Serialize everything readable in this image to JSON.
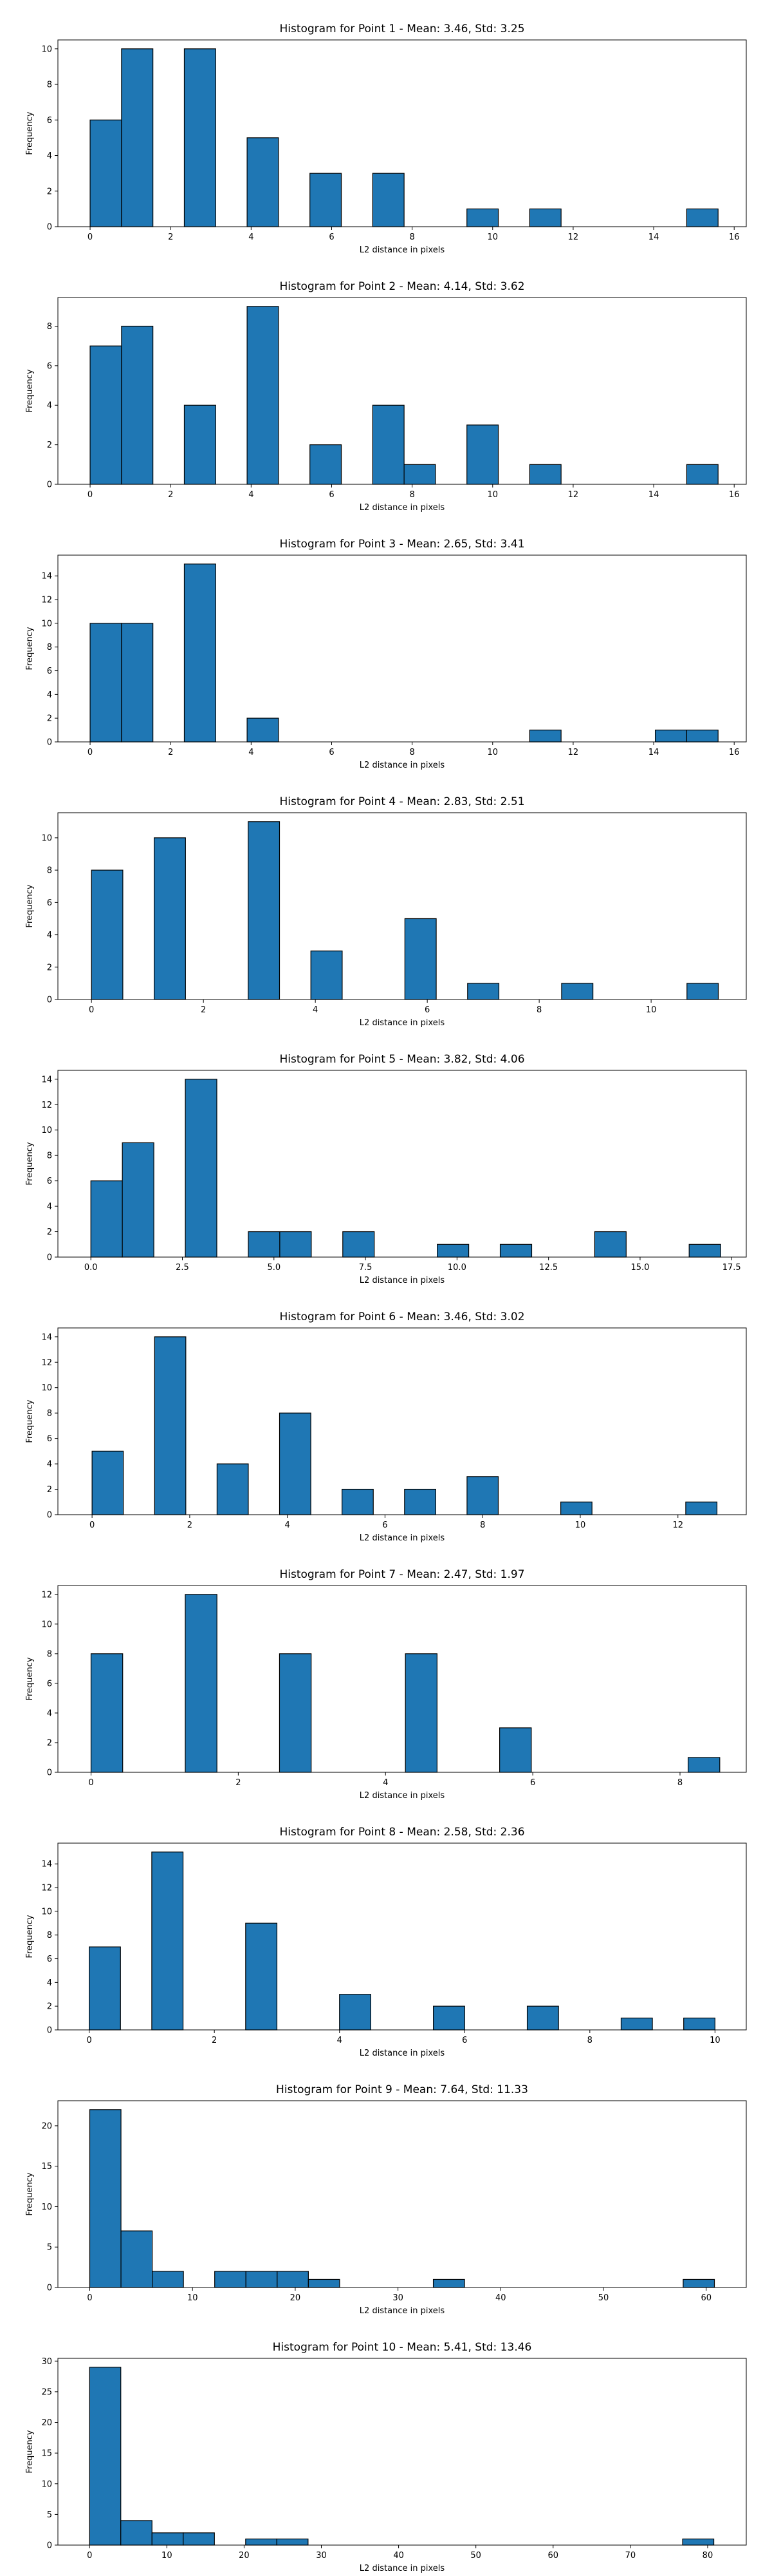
{
  "chart_data": [
    {
      "type": "bar",
      "title": "Histogram for Point 1 - Mean: 3.46, Std: 3.25",
      "xlabel": "L2 distance in pixels",
      "ylabel": "Frequency",
      "xlim": [
        -0.8,
        16.3
      ],
      "ylim": [
        0,
        10.5
      ],
      "xticks": [
        0,
        2,
        4,
        6,
        8,
        10,
        12,
        14,
        16
      ],
      "xtick_labels": [
        "0",
        "2",
        "4",
        "6",
        "8",
        "10",
        "12",
        "14",
        "16"
      ],
      "yticks": [
        0,
        2,
        4,
        6,
        8,
        10
      ],
      "ytick_labels": [
        "0",
        "2",
        "4",
        "6",
        "8",
        "10"
      ],
      "bins": [
        [
          0.0,
          0.78,
          6
        ],
        [
          0.78,
          1.56,
          10
        ],
        [
          2.34,
          3.12,
          10
        ],
        [
          3.9,
          4.68,
          5
        ],
        [
          5.46,
          6.24,
          3
        ],
        [
          7.02,
          7.8,
          3
        ],
        [
          9.36,
          10.14,
          1
        ],
        [
          10.92,
          11.7,
          1
        ],
        [
          14.82,
          15.6,
          1
        ]
      ]
    },
    {
      "type": "bar",
      "title": "Histogram for Point 2 - Mean: 4.14, Std: 3.62",
      "xlabel": "L2 distance in pixels",
      "ylabel": "Frequency",
      "xlim": [
        -0.8,
        16.3
      ],
      "ylim": [
        0,
        9.45
      ],
      "xticks": [
        0,
        2,
        4,
        6,
        8,
        10,
        12,
        14,
        16
      ],
      "xtick_labels": [
        "0",
        "2",
        "4",
        "6",
        "8",
        "10",
        "12",
        "14",
        "16"
      ],
      "yticks": [
        0,
        2,
        4,
        6,
        8
      ],
      "ytick_labels": [
        "0",
        "2",
        "4",
        "6",
        "8"
      ],
      "bins": [
        [
          0.0,
          0.78,
          7
        ],
        [
          0.78,
          1.56,
          8
        ],
        [
          2.34,
          3.12,
          4
        ],
        [
          3.9,
          4.68,
          9
        ],
        [
          5.46,
          6.24,
          2
        ],
        [
          7.02,
          7.8,
          4
        ],
        [
          7.8,
          8.58,
          1
        ],
        [
          9.36,
          10.14,
          3
        ],
        [
          10.92,
          11.7,
          1
        ],
        [
          14.82,
          15.6,
          1
        ]
      ]
    },
    {
      "type": "bar",
      "title": "Histogram for Point 3 - Mean: 2.65, Std: 3.41",
      "xlabel": "L2 distance in pixels",
      "ylabel": "Frequency",
      "xlim": [
        -0.8,
        16.3
      ],
      "ylim": [
        0,
        15.75
      ],
      "xticks": [
        0,
        2,
        4,
        6,
        8,
        10,
        12,
        14,
        16
      ],
      "xtick_labels": [
        "0",
        "2",
        "4",
        "6",
        "8",
        "10",
        "12",
        "14",
        "16"
      ],
      "yticks": [
        0,
        2,
        4,
        6,
        8,
        10,
        12,
        14
      ],
      "ytick_labels": [
        "0",
        "2",
        "4",
        "6",
        "8",
        "10",
        "12",
        "14"
      ],
      "bins": [
        [
          0.0,
          0.78,
          10
        ],
        [
          0.78,
          1.56,
          10
        ],
        [
          2.34,
          3.12,
          15
        ],
        [
          3.9,
          4.68,
          2
        ],
        [
          10.92,
          11.7,
          1
        ],
        [
          14.04,
          14.82,
          1
        ],
        [
          14.82,
          15.6,
          1
        ]
      ]
    },
    {
      "type": "bar",
      "title": "Histogram for Point 4 - Mean: 2.83, Std: 2.51",
      "xlabel": "L2 distance in pixels",
      "ylabel": "Frequency",
      "xlim": [
        -0.6,
        11.7
      ],
      "ylim": [
        0,
        11.55
      ],
      "xticks": [
        0,
        2,
        4,
        6,
        8,
        10
      ],
      "xtick_labels": [
        "0",
        "2",
        "4",
        "6",
        "8",
        "10"
      ],
      "yticks": [
        0,
        2,
        4,
        6,
        8,
        10
      ],
      "ytick_labels": [
        "0",
        "2",
        "4",
        "6",
        "8",
        "10"
      ],
      "bins": [
        [
          0.0,
          0.56,
          8
        ],
        [
          1.12,
          1.68,
          10
        ],
        [
          2.8,
          3.36,
          11
        ],
        [
          3.92,
          4.48,
          3
        ],
        [
          5.6,
          6.16,
          5
        ],
        [
          6.72,
          7.28,
          1
        ],
        [
          8.4,
          8.96,
          1
        ],
        [
          10.64,
          11.2,
          1
        ]
      ]
    },
    {
      "type": "bar",
      "title": "Histogram for Point 5 - Mean: 3.82, Std: 4.06",
      "xlabel": "L2 distance in pixels",
      "ylabel": "Frequency",
      "xlim": [
        -0.9,
        17.9
      ],
      "ylim": [
        0,
        14.7
      ],
      "xticks": [
        0,
        2.5,
        5,
        7.5,
        10,
        12.5,
        15,
        17.5
      ],
      "xtick_labels": [
        "0.0",
        "2.5",
        "5.0",
        "7.5",
        "10.0",
        "12.5",
        "15.0",
        "17.5"
      ],
      "yticks": [
        0,
        2,
        4,
        6,
        8,
        10,
        12,
        14
      ],
      "ytick_labels": [
        "0",
        "2",
        "4",
        "6",
        "8",
        "10",
        "12",
        "14"
      ],
      "bins": [
        [
          0.0,
          0.86,
          6
        ],
        [
          0.86,
          1.72,
          9
        ],
        [
          2.58,
          3.44,
          14
        ],
        [
          4.3,
          5.16,
          2
        ],
        [
          5.16,
          6.02,
          2
        ],
        [
          6.88,
          7.74,
          2
        ],
        [
          9.46,
          10.32,
          1
        ],
        [
          11.18,
          12.04,
          1
        ],
        [
          13.76,
          14.62,
          2
        ],
        [
          16.34,
          17.2,
          1
        ]
      ]
    },
    {
      "type": "bar",
      "title": "Histogram for Point 6 - Mean: 3.46, Std: 3.02",
      "xlabel": "L2 distance in pixels",
      "ylabel": "Frequency",
      "xlim": [
        -0.7,
        13.4
      ],
      "ylim": [
        0,
        14.7
      ],
      "xticks": [
        0,
        2,
        4,
        6,
        8,
        10,
        12
      ],
      "xtick_labels": [
        "0",
        "2",
        "4",
        "6",
        "8",
        "10",
        "12"
      ],
      "yticks": [
        0,
        2,
        4,
        6,
        8,
        10,
        12,
        14
      ],
      "ytick_labels": [
        "0",
        "2",
        "4",
        "6",
        "8",
        "10",
        "12",
        "14"
      ],
      "bins": [
        [
          0.0,
          0.64,
          5
        ],
        [
          1.28,
          1.92,
          14
        ],
        [
          2.56,
          3.2,
          4
        ],
        [
          3.84,
          4.48,
          8
        ],
        [
          5.12,
          5.76,
          2
        ],
        [
          6.4,
          7.04,
          2
        ],
        [
          7.68,
          8.32,
          3
        ],
        [
          9.6,
          10.24,
          1
        ],
        [
          12.16,
          12.8,
          1
        ]
      ]
    },
    {
      "type": "bar",
      "title": "Histogram for Point 7 - Mean: 2.47, Std: 1.97",
      "xlabel": "L2 distance in pixels",
      "ylabel": "Frequency",
      "xlim": [
        -0.45,
        8.9
      ],
      "ylim": [
        0,
        12.6
      ],
      "xticks": [
        0,
        2,
        4,
        6,
        8
      ],
      "xtick_labels": [
        "0",
        "2",
        "4",
        "6",
        "8"
      ],
      "yticks": [
        0,
        2,
        4,
        6,
        8,
        10,
        12
      ],
      "ytick_labels": [
        "0",
        "2",
        "4",
        "6",
        "8",
        "10",
        "12"
      ],
      "bins": [
        [
          0.0,
          0.43,
          8
        ],
        [
          1.28,
          1.71,
          12
        ],
        [
          2.56,
          2.99,
          8
        ],
        [
          4.27,
          4.7,
          8
        ],
        [
          5.55,
          5.98,
          3
        ],
        [
          8.11,
          8.54,
          1
        ]
      ]
    },
    {
      "type": "bar",
      "title": "Histogram for Point 8 - Mean: 2.58, Std: 2.36",
      "xlabel": "L2 distance in pixels",
      "ylabel": "Frequency",
      "xlim": [
        -0.5,
        10.5
      ],
      "ylim": [
        0,
        15.75
      ],
      "xticks": [
        0,
        2,
        4,
        6,
        8,
        10
      ],
      "xtick_labels": [
        "0",
        "2",
        "4",
        "6",
        "8",
        "10"
      ],
      "yticks": [
        0,
        2,
        4,
        6,
        8,
        10,
        12,
        14
      ],
      "ytick_labels": [
        "0",
        "2",
        "4",
        "6",
        "8",
        "10",
        "12",
        "14"
      ],
      "bins": [
        [
          0.0,
          0.5,
          7
        ],
        [
          1.0,
          1.5,
          15
        ],
        [
          2.5,
          3.0,
          9
        ],
        [
          4.0,
          4.5,
          3
        ],
        [
          5.5,
          6.0,
          2
        ],
        [
          7.0,
          7.5,
          2
        ],
        [
          8.5,
          9.0,
          1
        ],
        [
          9.5,
          10.0,
          1
        ]
      ]
    },
    {
      "type": "bar",
      "title": "Histogram for Point 9 - Mean: 7.64, Std: 11.33",
      "xlabel": "L2 distance in pixels",
      "ylabel": "Frequency",
      "xlim": [
        -3.1,
        63.9
      ],
      "ylim": [
        0,
        23.1
      ],
      "xticks": [
        0,
        10,
        20,
        30,
        40,
        50,
        60
      ],
      "xtick_labels": [
        "0",
        "10",
        "20",
        "30",
        "40",
        "50",
        "60"
      ],
      "yticks": [
        0,
        5,
        10,
        15,
        20
      ],
      "ytick_labels": [
        "0",
        "5",
        "10",
        "15",
        "20"
      ],
      "bins": [
        [
          0.0,
          3.04,
          22
        ],
        [
          3.04,
          6.08,
          7
        ],
        [
          6.08,
          9.12,
          2
        ],
        [
          12.16,
          15.2,
          2
        ],
        [
          15.2,
          18.24,
          2
        ],
        [
          18.24,
          21.28,
          2
        ],
        [
          21.28,
          24.32,
          1
        ],
        [
          33.44,
          36.48,
          1
        ],
        [
          57.76,
          60.8,
          1
        ]
      ]
    },
    {
      "type": "bar",
      "title": "Histogram for Point 10 - Mean: 5.41, Std: 13.46",
      "xlabel": "L2 distance in pixels",
      "ylabel": "Frequency",
      "xlim": [
        -4.1,
        85.0
      ],
      "ylim": [
        0,
        30.45
      ],
      "xticks": [
        0,
        10,
        20,
        30,
        40,
        50,
        60,
        70,
        80
      ],
      "xtick_labels": [
        "0",
        "10",
        "20",
        "30",
        "40",
        "50",
        "60",
        "70",
        "80"
      ],
      "yticks": [
        0,
        5,
        10,
        15,
        20,
        25,
        30
      ],
      "ytick_labels": [
        "0",
        "5",
        "10",
        "15",
        "20",
        "25",
        "30"
      ],
      "bins": [
        [
          0.0,
          4.04,
          29
        ],
        [
          4.04,
          8.08,
          4
        ],
        [
          8.08,
          12.12,
          2
        ],
        [
          12.12,
          16.16,
          2
        ],
        [
          20.2,
          24.24,
          1
        ],
        [
          24.24,
          28.28,
          1
        ],
        [
          76.76,
          80.8,
          1
        ]
      ]
    }
  ],
  "colors": {
    "bar_fill": "#1f77b4",
    "bar_edge": "#000000"
  }
}
